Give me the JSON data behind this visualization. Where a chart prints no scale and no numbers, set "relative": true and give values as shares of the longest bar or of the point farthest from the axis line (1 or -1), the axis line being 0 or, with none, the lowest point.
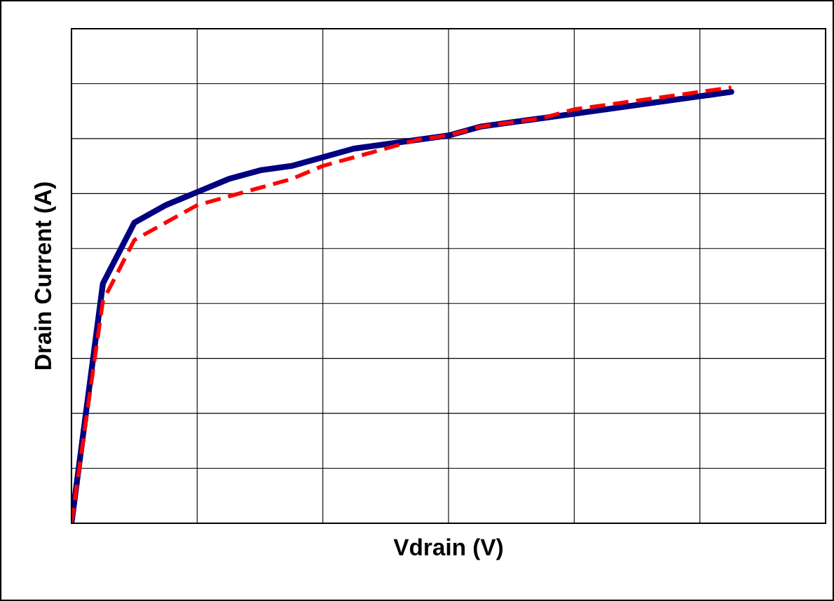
{
  "chart_data": {
    "type": "line",
    "xlabel": "Vdrain (V)",
    "ylabel": "Drain Current (A)",
    "relative": true,
    "grid": true,
    "legend": false,
    "categories": [
      null,
      null,
      null,
      null,
      null,
      null,
      null,
      null,
      null,
      null,
      null,
      null,
      null,
      null,
      null,
      null,
      null,
      null,
      null,
      null,
      null,
      null,
      null,
      null,
      null
    ],
    "series": [
      {
        "color": "#000080",
        "line_style": "solid",
        "values": [
          0,
          0.55,
          0.69,
          0.73,
          0.76,
          0.79,
          0.81,
          0.82,
          0.84,
          0.86,
          0.87,
          0.88,
          0.89,
          0.91,
          0.92,
          0.93,
          0.94,
          0.95,
          0.96,
          0.97,
          0.98,
          0.99,
          null,
          null,
          null
        ]
      },
      {
        "color": "#ff0000",
        "line_style": "dashed",
        "values": [
          0,
          0.51,
          0.65,
          0.69,
          0.73,
          0.75,
          0.77,
          0.79,
          0.82,
          0.84,
          0.86,
          0.88,
          0.89,
          0.91,
          0.92,
          0.93,
          0.95,
          0.96,
          0.97,
          0.98,
          0.99,
          1,
          null,
          null,
          null
        ]
      }
    ]
  }
}
